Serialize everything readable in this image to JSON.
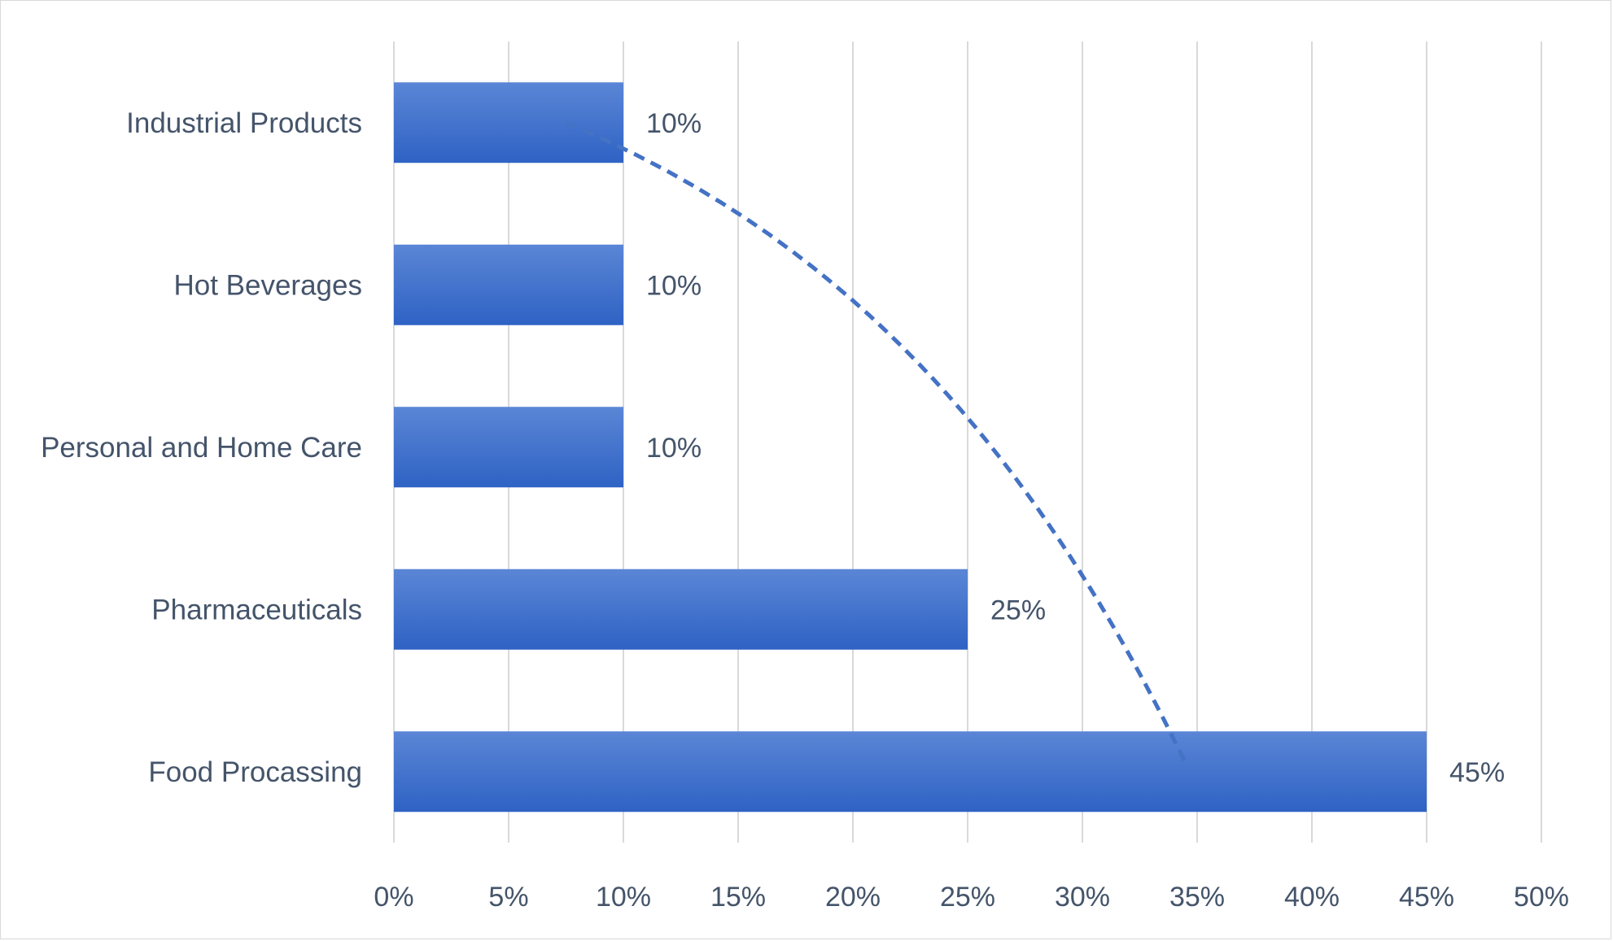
{
  "chart_data": {
    "type": "bar",
    "orientation": "horizontal",
    "categories": [
      "Industrial Products",
      "Hot Beverages",
      "Personal and Home Care",
      "Pharmaceuticals",
      "Food Procassing"
    ],
    "values": [
      10,
      10,
      10,
      25,
      45
    ],
    "data_labels": [
      "10%",
      "10%",
      "10%",
      "25%",
      "45%"
    ],
    "xlim": [
      0,
      50
    ],
    "x_ticks": [
      0,
      5,
      10,
      15,
      20,
      25,
      30,
      35,
      40,
      45,
      50
    ],
    "x_tick_labels": [
      "0%",
      "5%",
      "10%",
      "15%",
      "20%",
      "25%",
      "30%",
      "35%",
      "40%",
      "45%",
      "50%"
    ],
    "title": "",
    "xlabel": "",
    "ylabel": "",
    "grid": "vertical",
    "legend": "none",
    "trendline": {
      "style": "dashed",
      "shape": "curve"
    },
    "colors": {
      "bar_top": "#5b86d6",
      "bar_bottom": "#2e62c4",
      "trendline": "#4472c4",
      "gridline": "#d9d9d9",
      "text": "#44546a"
    }
  }
}
